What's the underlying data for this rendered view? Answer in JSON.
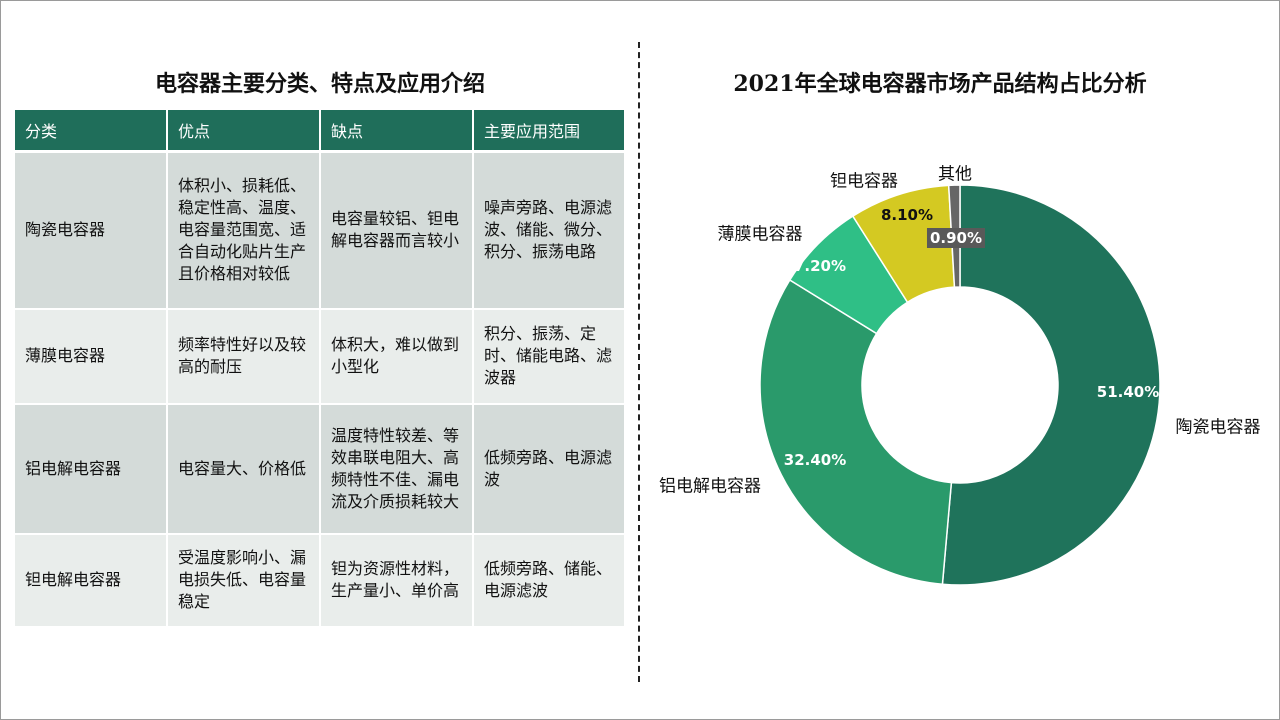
{
  "left": {
    "title": "电容器主要分类、特点及应用介绍",
    "headers": [
      "分类",
      "优点",
      "缺点",
      "主要应用范围"
    ],
    "rows": [
      [
        "陶瓷电容器",
        "体积小、损耗低、稳定性高、温度、电容量范围宽、适合自动化贴片生产且价格相对较低",
        "电容量较铝、钽电解电容器而言较小",
        "噪声旁路、电源滤波、储能、微分、积分、振荡电路"
      ],
      [
        "薄膜电容器",
        "频率特性好以及较高的耐压",
        "体积大，难以做到小型化",
        "积分、振荡、定时、储能电路、滤波器"
      ],
      [
        "铝电解电容器",
        "电容量大、价格低",
        "温度特性较差、等效串联电阻大、高频特性不佳、漏电流及介质损耗较大",
        "低频旁路、电源滤波"
      ],
      [
        "钽电解电容器",
        "受温度影响小、漏电损失低、电容量稳定",
        "钽为资源性材料，生产量小、单价高",
        "低频旁路、储能、电源滤波"
      ]
    ]
  },
  "chart_data": {
    "type": "pie",
    "donut": true,
    "title": "2021年全球电容器市场产品结构占比分析",
    "categories": [
      "陶瓷电容器",
      "铝电解电容器",
      "薄膜电容器",
      "钽电容器",
      "其他"
    ],
    "values": [
      51.4,
      32.4,
      7.2,
      8.1,
      0.9
    ],
    "data_labels": [
      "51.40%",
      "32.40%",
      "7.20%",
      "8.10%",
      "0.90%"
    ],
    "colors": [
      "#1f735b",
      "#2a9a6b",
      "#2fbf86",
      "#d4c922",
      "#666666"
    ],
    "start": "12 o'clock, clockwise",
    "legend": "none (category labels outside slices)"
  }
}
